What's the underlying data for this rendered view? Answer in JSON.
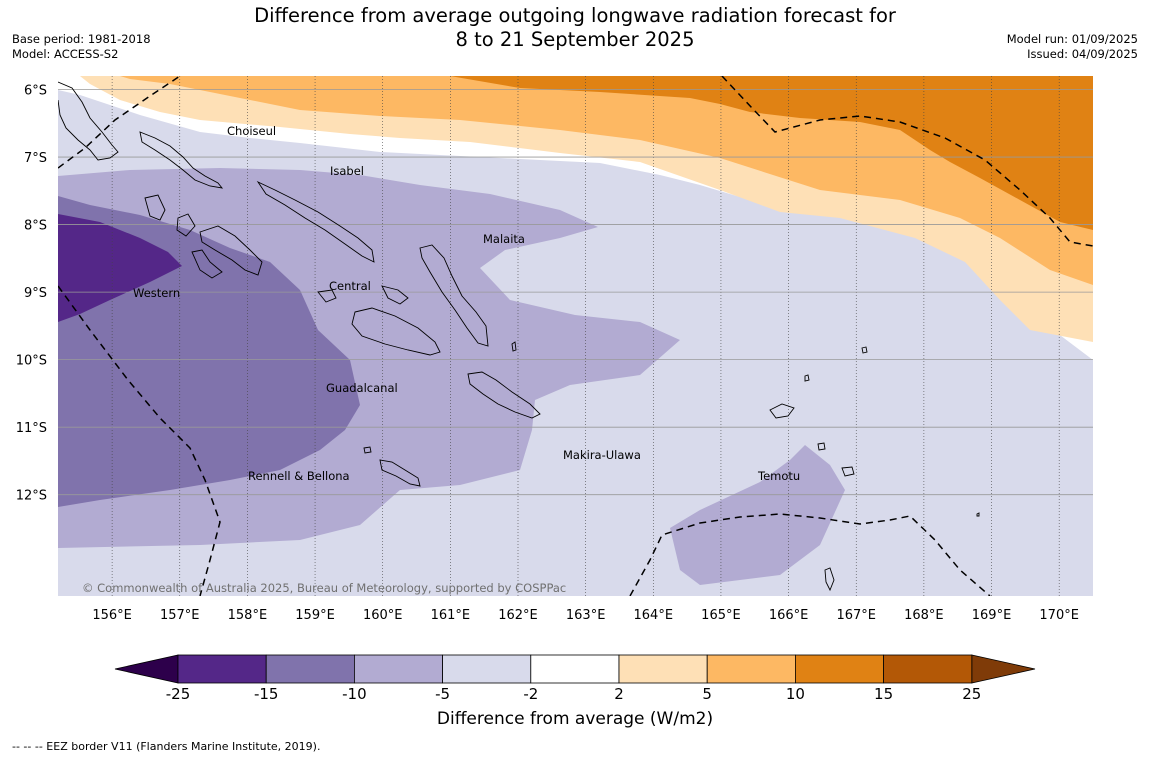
{
  "header": {
    "title_line1": "Difference from average outgoing longwave radiation forecast for",
    "title_line2": "8 to 21 September 2025",
    "base_period": "Base period: 1981-2018",
    "model": "Model: ACCESS-S2",
    "model_run": "Model run: 01/09/2025",
    "issued": "Issued: 04/09/2025"
  },
  "map": {
    "lon_range": [
      155.2,
      170.5
    ],
    "lat_range": [
      -13.5,
      -5.8
    ],
    "lat_labels": [
      "6°S",
      "7°S",
      "8°S",
      "9°S",
      "10°S",
      "11°S",
      "12°S"
    ],
    "lon_labels": [
      "156°E",
      "157°E",
      "158°E",
      "159°E",
      "160°E",
      "161°E",
      "162°E",
      "163°E",
      "164°E",
      "165°E",
      "166°E",
      "167°E",
      "168°E",
      "169°E",
      "170°E"
    ],
    "place_labels": [
      "Choiseul",
      "Isabel",
      "Malaita",
      "Western",
      "Central",
      "Guadalcanal",
      "Makira-Ulawa",
      "Temotu",
      "Rennell & Bellona"
    ],
    "copyright": "© Commonwealth of Australia 2025, Bureau of Meteorology, supported by COSPPac"
  },
  "colorbar": {
    "ticks": [
      "-25",
      "-15",
      "-10",
      "-5",
      "-2",
      "2",
      "5",
      "10",
      "15",
      "25"
    ],
    "colors": [
      "#542788",
      "#8073ac",
      "#b2abd2",
      "#d8daeb",
      "#ffffff",
      "#fee0b6",
      "#fdb863",
      "#e08214",
      "#b35806"
    ],
    "under_color": "#2d004b",
    "over_color": "#7f3b08",
    "title": "Difference from average (W/m2)"
  },
  "footer": {
    "legend": "--  --  -- EEZ border V11 (Flanders Marine Institute, 2019)."
  }
}
